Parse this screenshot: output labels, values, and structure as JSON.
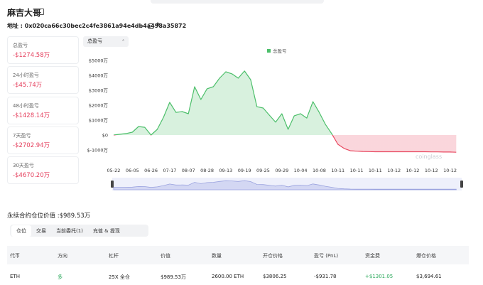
{
  "header": {
    "title": "麻吉大哥",
    "address": "地址 : 0x020ca66c30bec2c4fe3861a94e4db4a498a35872"
  },
  "stats": [
    {
      "label": "总盈亏",
      "value": "-$1274.58万"
    },
    {
      "label": "24小时盈亏",
      "value": "-$45.74万"
    },
    {
      "label": "48小时盈亏",
      "value": "-$1428.14万"
    },
    {
      "label": "7天盈亏",
      "value": "-$2702.94万"
    },
    {
      "label": "30天盈亏",
      "value": "-$4670.20万"
    }
  ],
  "dropdown": "总盈亏",
  "chart_data": {
    "type": "area",
    "categories": [
      "05-22",
      null,
      null,
      "06-05",
      null,
      null,
      "06-26",
      null,
      null,
      "07-17",
      null,
      null,
      "08-07",
      null,
      null,
      "08-28",
      null,
      null,
      "09-13",
      null,
      null,
      "09-19",
      null,
      null,
      "09-25",
      null,
      null,
      "09-29",
      null,
      null,
      "10-04",
      null,
      null,
      "10-08",
      null,
      null,
      "10-11",
      null,
      null,
      "10-11",
      null,
      null,
      "10-11",
      null,
      null,
      "10-12",
      null,
      null,
      "10-12",
      null,
      null,
      "10-12",
      null,
      null,
      "10-12",
      null
    ],
    "series": [
      {
        "name": "总盈亏",
        "color": "#4cbf6a",
        "negative_color": "#e8475f",
        "values": [
          0,
          50,
          100,
          190,
          570,
          520,
          0,
          380,
          1190,
          2190,
          1520,
          1570,
          1430,
          3240,
          2380,
          3100,
          3240,
          3810,
          4240,
          4100,
          3810,
          4290,
          3710,
          1900,
          1810,
          1330,
          860,
          1430,
          380,
          1290,
          1430,
          1140,
          2240,
          1520,
          710,
          100,
          -620,
          -900,
          -1050,
          -1080,
          -1100,
          -1110,
          -1120,
          -1120,
          -1120,
          -1120,
          -1120,
          -1120,
          -1120,
          -1120,
          -1120,
          -1130,
          -1130,
          -1140,
          -1140,
          -1150
        ]
      }
    ],
    "ylim": [
      -1500,
      5300
    ],
    "yticks": [
      {
        "value": 5000,
        "label": "$5000万"
      },
      {
        "value": 4000,
        "label": "$4000万"
      },
      {
        "value": 3000,
        "label": "$3000万"
      },
      {
        "value": 2000,
        "label": "$2000万"
      },
      {
        "value": 1000,
        "label": "$1000万"
      },
      {
        "value": 0,
        "label": "$0"
      },
      {
        "value": -1000,
        "label": "$-1000万"
      }
    ],
    "watermark": "coinglass"
  },
  "position_value": "永续合约仓位价值 :$989.53万",
  "tabs": [
    "仓位",
    "交易",
    "当前委托(1)",
    "充值 & 提现"
  ],
  "table": {
    "columns": [
      "代币",
      "方向",
      "杠杆",
      "价值",
      "数量",
      "开仓价格",
      "盈亏 (PnL)",
      "资金费",
      "爆仓价格"
    ],
    "rows": [
      [
        "ETH",
        "多",
        "25X 全仓",
        "$989.53万",
        "2600.00 ETH",
        "$3806.25",
        "-$931.78",
        "+$1301.05",
        "$3,694.61"
      ]
    ]
  }
}
